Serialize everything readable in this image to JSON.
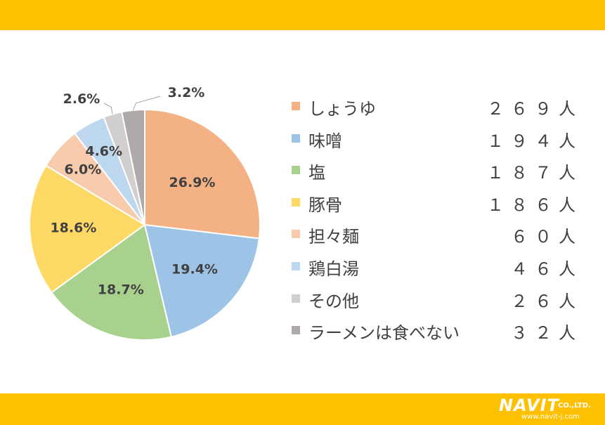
{
  "theme": {
    "band_color": "#FFC000"
  },
  "chart_data": {
    "type": "pie",
    "start_angle_deg": 0,
    "direction": "clockwise",
    "slices": [
      {
        "name": "しょうゆ",
        "count": "２６９人",
        "value": 26.9,
        "label": "26.9%",
        "color": "#F4B183"
      },
      {
        "name": "味噌",
        "count": "１９４人",
        "value": 19.4,
        "label": "19.4%",
        "color": "#9DC3E6"
      },
      {
        "name": "塩",
        "count": "１８７人",
        "value": 18.7,
        "label": "18.7%",
        "color": "#A9D18E"
      },
      {
        "name": "豚骨",
        "count": "１８６人",
        "value": 18.6,
        "label": "18.6%",
        "color": "#FFD966"
      },
      {
        "name": "担々麺",
        "count": "６０人",
        "value": 6.0,
        "label": "6.0%",
        "color": "#F8CBAD"
      },
      {
        "name": "鶏白湯",
        "count": "４６人",
        "value": 4.6,
        "label": "4.6%",
        "color": "#BDD7EE"
      },
      {
        "name": "その他",
        "count": "２６人",
        "value": 2.6,
        "label": "2.6%",
        "color": "#D0CECE"
      },
      {
        "name": "ラーメンは食べない",
        "count": "３２人",
        "value": 3.2,
        "label": "3.2%",
        "color": "#AEAAAA"
      }
    ],
    "legend_position": "right"
  },
  "branding": {
    "logo_name": "NAVIT",
    "logo_suffix": "CO.,LTD.",
    "logo_url": "www.navit-j.com"
  }
}
